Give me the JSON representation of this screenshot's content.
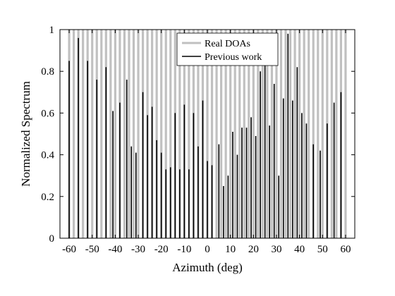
{
  "chart_data": {
    "type": "bar",
    "xlabel": "Azimuth (deg)",
    "ylabel": "Normalized Spectrum",
    "xlim": [
      -64,
      64
    ],
    "ylim": [
      0,
      1
    ],
    "xticks": [
      -60,
      -50,
      -40,
      -30,
      -20,
      -10,
      0,
      10,
      20,
      30,
      40,
      50,
      60
    ],
    "yticks": [
      0,
      0.2,
      0.4,
      0.6,
      0.8,
      1
    ],
    "legend_position": "top-right",
    "colors": {
      "real": "#c0c0c0",
      "previous": "#000000",
      "axis": "#000000",
      "background": "#ffffff"
    },
    "series": [
      {
        "name": "Real DOAs",
        "x": [
          -60,
          -58,
          -56,
          -54,
          -52,
          -50,
          -48,
          -46,
          -44,
          -42,
          -40,
          -38,
          -36,
          -34,
          -32,
          -30,
          -28,
          -26,
          -24,
          -22,
          -20,
          -18,
          -16,
          -14,
          -12,
          -10,
          -8,
          -6,
          -4,
          -2,
          0,
          2,
          4,
          6,
          8,
          10,
          12,
          14,
          16,
          18,
          20,
          22,
          24,
          26,
          28,
          30,
          32,
          34,
          36,
          38,
          40,
          42,
          44,
          46,
          48,
          50,
          52,
          54,
          56,
          58,
          60
        ],
        "y_value": 1
      },
      {
        "name": "Previous work",
        "x": [
          -60,
          -56,
          -52,
          -48,
          -44,
          -41,
          -38,
          -35,
          -33,
          -31,
          -28,
          -26,
          -24,
          -22,
          -20,
          -18,
          -16,
          -14,
          -12,
          -10,
          -8,
          -6,
          -4,
          -2,
          0,
          2,
          5,
          7,
          9,
          11,
          13,
          15,
          17,
          19,
          21,
          23,
          25,
          27,
          29,
          31,
          33,
          35,
          37,
          39,
          41,
          43,
          46,
          49,
          52,
          55,
          58
        ],
        "y": [
          0.85,
          0.96,
          0.85,
          0.76,
          0.82,
          0.61,
          0.65,
          0.76,
          0.44,
          0.41,
          0.7,
          0.59,
          0.63,
          0.47,
          0.41,
          0.33,
          0.34,
          0.6,
          0.33,
          0.64,
          0.33,
          0.6,
          0.44,
          0.66,
          0.37,
          0.35,
          0.45,
          0.25,
          0.3,
          0.51,
          0.4,
          0.53,
          0.53,
          0.58,
          0.49,
          0.8,
          0.93,
          0.54,
          0.74,
          0.3,
          0.67,
          0.98,
          0.66,
          0.82,
          0.6,
          0.55,
          0.45,
          0.42,
          0.55,
          0.65,
          0.7
        ]
      }
    ]
  }
}
